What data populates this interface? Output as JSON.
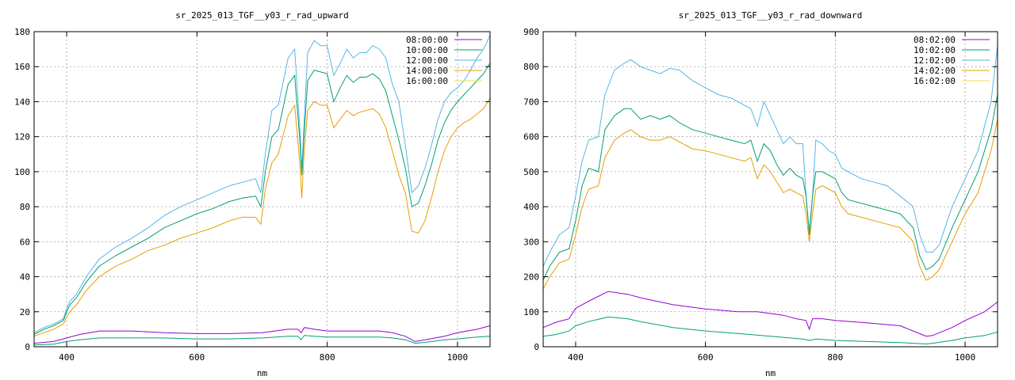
{
  "chart_data": [
    {
      "type": "line",
      "title": "sr_2025_013_TGF__y03_r_rad_upward",
      "xlabel": "nm",
      "ylabel": "",
      "xlim": [
        350,
        1050
      ],
      "ylim": [
        0,
        180
      ],
      "xticks": [
        400,
        600,
        800,
        1000
      ],
      "yticks": [
        0,
        20,
        40,
        60,
        80,
        100,
        120,
        140,
        160,
        180
      ],
      "xtick_labels": [
        "400",
        "600",
        "800",
        "1000"
      ],
      "ytick_labels": [
        "0",
        "20",
        "40",
        "60",
        "80",
        "100",
        "120",
        "140",
        "160",
        "180"
      ],
      "grid": true,
      "legend": "top-right",
      "series": [
        {
          "name": "08:00:00",
          "color": "#9400d3",
          "x": [
            350,
            380,
            400,
            420,
            450,
            500,
            550,
            600,
            650,
            700,
            740,
            755,
            760,
            765,
            780,
            800,
            830,
            850,
            880,
            900,
            920,
            935,
            950,
            980,
            1000,
            1030,
            1050
          ],
          "y": [
            2,
            3,
            5,
            7,
            9,
            9,
            8,
            7.5,
            7.5,
            8,
            10,
            10,
            8,
            11,
            10,
            9,
            9,
            9,
            9,
            8,
            6,
            3,
            4,
            6,
            8,
            10,
            12
          ]
        },
        {
          "name": "10:00:00",
          "color": "#009e73",
          "x": [
            350,
            380,
            400,
            420,
            450,
            500,
            550,
            600,
            650,
            700,
            740,
            755,
            760,
            765,
            780,
            800,
            830,
            850,
            880,
            900,
            920,
            935,
            950,
            980,
            1000,
            1030,
            1050
          ],
          "y": [
            1,
            1.5,
            3,
            4,
            5,
            5,
            5,
            4.5,
            4.5,
            5,
            6,
            6,
            4,
            6.5,
            6,
            5.5,
            5.5,
            5.5,
            5.5,
            5,
            4,
            2,
            2.5,
            4,
            4.5,
            5.5,
            6
          ]
        },
        {
          "name": "12:00:00",
          "color": "#56b4e9",
          "x": [
            350,
            365,
            380,
            395,
            400,
            405,
            415,
            430,
            450,
            475,
            500,
            525,
            550,
            575,
            600,
            625,
            650,
            670,
            690,
            698,
            705,
            715,
            725,
            740,
            750,
            758,
            761,
            764,
            770,
            780,
            790,
            800,
            810,
            820,
            830,
            840,
            850,
            860,
            870,
            880,
            890,
            900,
            910,
            920,
            930,
            940,
            950,
            960,
            970,
            980,
            990,
            1000,
            1010,
            1020,
            1030,
            1040,
            1050
          ],
          "y": [
            8,
            11,
            13,
            16,
            22,
            26,
            30,
            40,
            50,
            57,
            62,
            68,
            75,
            80,
            84,
            88,
            92,
            94,
            96,
            88,
            110,
            135,
            138,
            165,
            170,
            125,
            100,
            125,
            168,
            175,
            172,
            172,
            155,
            162,
            170,
            165,
            168,
            168,
            172,
            170,
            165,
            150,
            140,
            115,
            88,
            92,
            102,
            115,
            130,
            140,
            145,
            148,
            152,
            158,
            165,
            170,
            178
          ]
        },
        {
          "name": "14:00:00",
          "color": "#e69f00",
          "x": [
            350,
            365,
            380,
            395,
            400,
            405,
            415,
            430,
            450,
            475,
            500,
            525,
            550,
            575,
            600,
            625,
            650,
            670,
            690,
            698,
            705,
            715,
            725,
            740,
            750,
            758,
            761,
            764,
            770,
            780,
            790,
            800,
            810,
            820,
            830,
            840,
            850,
            860,
            870,
            880,
            890,
            900,
            910,
            920,
            930,
            940,
            950,
            960,
            970,
            980,
            990,
            1000,
            1010,
            1020,
            1030,
            1040,
            1050
          ],
          "y": [
            6,
            8,
            10,
            13,
            17,
            20,
            24,
            32,
            40,
            46,
            50,
            55,
            58,
            62,
            65,
            68,
            72,
            74,
            74,
            70,
            90,
            105,
            110,
            132,
            138,
            105,
            85,
            108,
            135,
            140,
            138,
            138,
            125,
            130,
            135,
            132,
            134,
            135,
            136,
            133,
            125,
            112,
            98,
            88,
            66,
            65,
            72,
            85,
            100,
            112,
            120,
            125,
            128,
            130,
            133,
            136,
            142
          ]
        },
        {
          "name": "16:00:00",
          "color": "#f0e442",
          "x": [],
          "y": []
        }
      ],
      "extra_series": [
        {
          "name": "",
          "color": "#009e73",
          "x": [
            350,
            365,
            380,
            395,
            400,
            405,
            415,
            430,
            450,
            475,
            500,
            525,
            550,
            575,
            600,
            625,
            650,
            670,
            690,
            698,
            705,
            715,
            725,
            740,
            750,
            758,
            761,
            764,
            770,
            780,
            790,
            800,
            810,
            820,
            830,
            840,
            850,
            860,
            870,
            880,
            890,
            900,
            910,
            920,
            930,
            940,
            950,
            960,
            970,
            980,
            990,
            1000,
            1010,
            1020,
            1030,
            1040,
            1050
          ],
          "y": [
            7,
            10,
            12,
            15,
            20,
            24,
            28,
            37,
            46,
            52,
            57,
            62,
            68,
            72,
            76,
            79,
            83,
            85,
            86,
            80,
            100,
            120,
            124,
            150,
            155,
            118,
            98,
            118,
            152,
            158,
            157,
            156,
            140,
            148,
            155,
            151,
            154,
            154,
            156,
            153,
            146,
            132,
            118,
            102,
            80,
            82,
            92,
            104,
            118,
            128,
            135,
            140,
            144,
            148,
            152,
            156,
            162
          ]
        }
      ]
    },
    {
      "type": "line",
      "title": "sr_2025_013_TGF__y03_r_rad_downward",
      "xlabel": "nm",
      "ylabel": "",
      "xlim": [
        350,
        1050
      ],
      "ylim": [
        0,
        900
      ],
      "xticks": [
        400,
        600,
        800,
        1000
      ],
      "yticks": [
        0,
        100,
        200,
        300,
        400,
        500,
        600,
        700,
        800,
        900
      ],
      "xtick_labels": [
        "400",
        "600",
        "800",
        "1000"
      ],
      "ytick_labels": [
        "0",
        "100",
        "200",
        "300",
        "400",
        "500",
        "600",
        "700",
        "800",
        "900"
      ],
      "grid": true,
      "legend": "top-right",
      "series": [
        {
          "name": "08:02:00",
          "color": "#9400d3",
          "x": [
            350,
            370,
            390,
            400,
            420,
            450,
            480,
            500,
            550,
            600,
            650,
            680,
            700,
            720,
            740,
            755,
            760,
            765,
            780,
            800,
            850,
            900,
            920,
            940,
            950,
            980,
            1000,
            1030,
            1050
          ],
          "y": [
            55,
            70,
            80,
            110,
            130,
            158,
            150,
            140,
            120,
            108,
            100,
            100,
            95,
            90,
            80,
            75,
            50,
            80,
            80,
            75,
            68,
            60,
            45,
            30,
            32,
            55,
            75,
            100,
            128
          ]
        },
        {
          "name": "10:02:00",
          "color": "#009e73",
          "x": [
            350,
            370,
            390,
            400,
            420,
            450,
            480,
            500,
            550,
            600,
            650,
            700,
            750,
            760,
            770,
            800,
            850,
            900,
            940,
            950,
            980,
            1000,
            1030,
            1050
          ],
          "y": [
            30,
            35,
            45,
            60,
            72,
            85,
            80,
            72,
            55,
            45,
            38,
            30,
            22,
            18,
            22,
            18,
            15,
            12,
            8,
            10,
            18,
            25,
            32,
            42
          ]
        },
        {
          "name": "12:02:00",
          "color": "#56b4e9",
          "x": [
            350,
            360,
            375,
            390,
            400,
            410,
            420,
            435,
            445,
            460,
            475,
            485,
            500,
            515,
            530,
            545,
            560,
            580,
            600,
            620,
            640,
            660,
            670,
            680,
            690,
            700,
            710,
            720,
            730,
            740,
            750,
            755,
            760,
            765,
            770,
            780,
            790,
            800,
            810,
            820,
            840,
            860,
            880,
            900,
            920,
            930,
            940,
            950,
            960,
            980,
            1000,
            1020,
            1040,
            1050
          ],
          "y": [
            230,
            270,
            320,
            340,
            430,
            530,
            590,
            600,
            720,
            790,
            810,
            820,
            800,
            790,
            780,
            795,
            790,
            760,
            740,
            720,
            710,
            690,
            680,
            630,
            700,
            660,
            620,
            580,
            600,
            580,
            580,
            430,
            330,
            430,
            590,
            580,
            560,
            550,
            510,
            500,
            480,
            470,
            460,
            430,
            400,
            320,
            270,
            270,
            290,
            400,
            480,
            560,
            700,
            860
          ]
        },
        {
          "name": "14:02:00",
          "color": "#e69f00",
          "x": [
            350,
            360,
            375,
            390,
            400,
            410,
            420,
            435,
            445,
            460,
            475,
            485,
            500,
            515,
            530,
            545,
            560,
            580,
            600,
            620,
            640,
            660,
            670,
            680,
            690,
            700,
            710,
            720,
            730,
            740,
            750,
            755,
            760,
            765,
            770,
            780,
            790,
            800,
            810,
            820,
            840,
            860,
            880,
            900,
            920,
            930,
            940,
            950,
            960,
            980,
            1000,
            1020,
            1040,
            1050
          ],
          "y": [
            165,
            200,
            240,
            250,
            320,
            400,
            450,
            460,
            540,
            590,
            610,
            620,
            600,
            590,
            590,
            600,
            585,
            565,
            560,
            550,
            540,
            530,
            540,
            480,
            520,
            500,
            470,
            440,
            450,
            440,
            430,
            380,
            300,
            380,
            450,
            460,
            450,
            440,
            400,
            380,
            370,
            360,
            350,
            340,
            300,
            230,
            190,
            200,
            220,
            300,
            380,
            440,
            560,
            650
          ]
        },
        {
          "name": "16:02:00",
          "color": "#f0e442",
          "x": [],
          "y": []
        }
      ],
      "extra_series": [
        {
          "name": "",
          "color": "#009e73",
          "x": [
            350,
            360,
            375,
            390,
            400,
            410,
            420,
            435,
            445,
            460,
            475,
            485,
            500,
            515,
            530,
            545,
            560,
            580,
            600,
            620,
            640,
            660,
            670,
            680,
            690,
            700,
            710,
            720,
            730,
            740,
            750,
            755,
            760,
            765,
            770,
            780,
            790,
            800,
            810,
            820,
            840,
            860,
            880,
            900,
            920,
            930,
            940,
            950,
            960,
            980,
            1000,
            1020,
            1040,
            1050
          ],
          "y": [
            190,
            230,
            270,
            280,
            360,
            460,
            510,
            500,
            620,
            660,
            680,
            680,
            650,
            660,
            650,
            660,
            640,
            620,
            610,
            600,
            590,
            580,
            590,
            530,
            580,
            560,
            520,
            490,
            510,
            490,
            480,
            430,
            320,
            430,
            500,
            500,
            490,
            480,
            440,
            420,
            410,
            400,
            390,
            380,
            340,
            260,
            220,
            230,
            250,
            340,
            420,
            500,
            620,
            720
          ]
        }
      ]
    }
  ]
}
